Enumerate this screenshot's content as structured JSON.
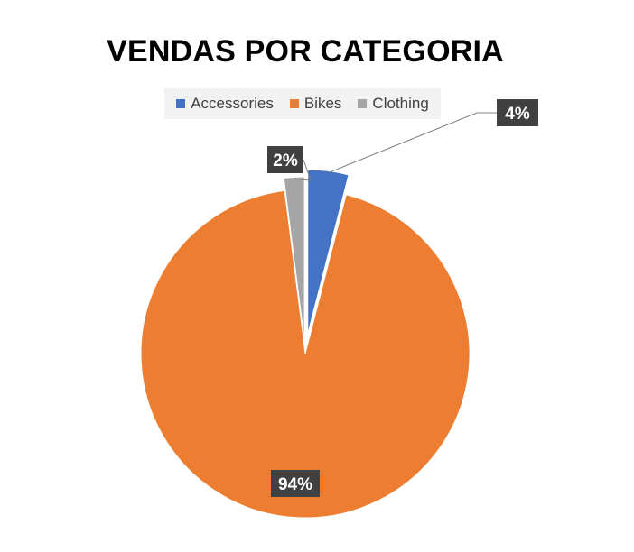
{
  "chart_data": {
    "type": "pie",
    "title": "VENDAS POR CATEGORIA",
    "categories": [
      "Accessories",
      "Bikes",
      "Clothing"
    ],
    "values": [
      4,
      94,
      2
    ],
    "value_labels": [
      "4%",
      "94%",
      "2%"
    ],
    "colors": [
      "#4472c4",
      "#ed7d31",
      "#a5a5a5"
    ],
    "exploded": true,
    "legend_position": "top"
  }
}
